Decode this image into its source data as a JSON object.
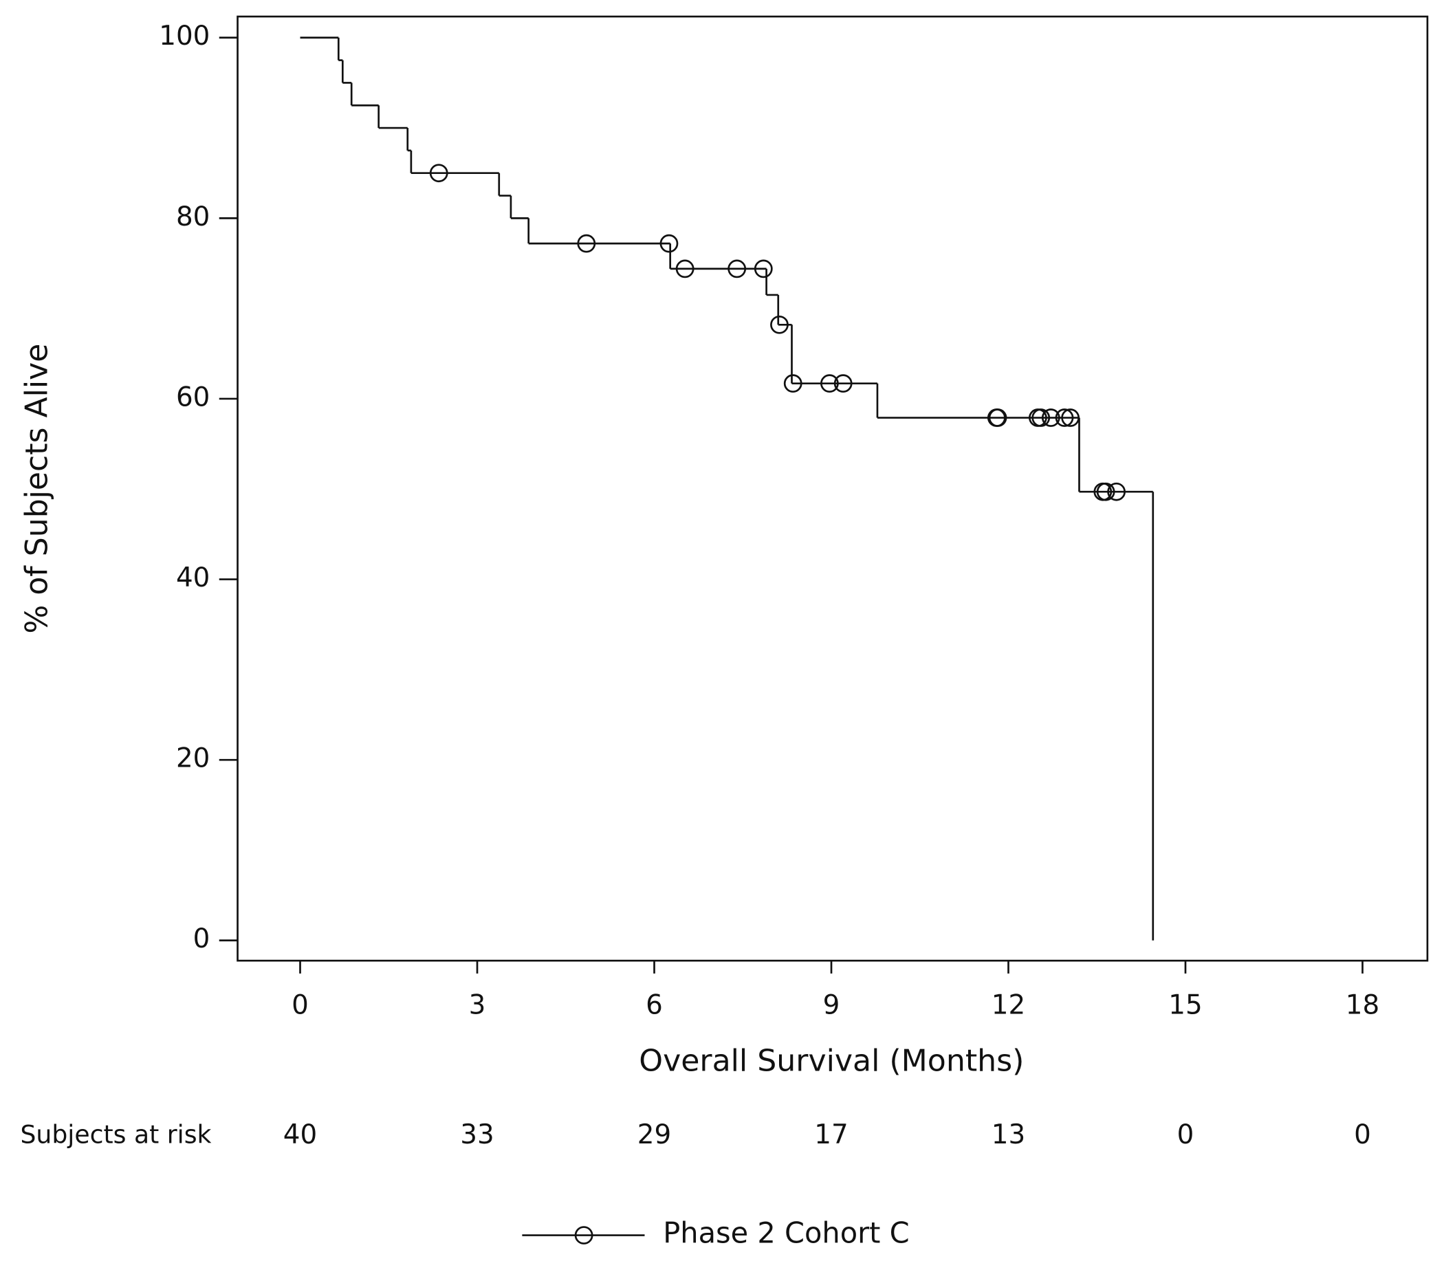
{
  "chart_data": {
    "type": "step",
    "x_label": "Overall Survival (Months)",
    "y_label": "% of Subjects Alive",
    "xlim": [
      -1.06,
      19.1
    ],
    "ylim": [
      -2.24,
      102.34
    ],
    "xticks": [
      0,
      3,
      6,
      9,
      12,
      15,
      18
    ],
    "yticks": [
      0,
      20,
      40,
      60,
      80,
      100
    ],
    "series": [
      {
        "name": "Phase 2 Cohort C",
        "color": "#111111",
        "x": [
          0,
          0.65,
          0.72,
          0.87,
          1.33,
          1.82,
          1.88,
          3.37,
          3.57,
          3.87,
          6.27,
          7.9,
          8.1,
          8.33,
          9.78,
          13.2,
          14.45
        ],
        "values": [
          100,
          97.5,
          95,
          92.5,
          90,
          87.5,
          85,
          82.5,
          80,
          77.2,
          74.4,
          71.5,
          68.2,
          61.7,
          57.9,
          49.7,
          0
        ],
        "censored_x": [
          2.35,
          4.85,
          6.25,
          6.52,
          7.4,
          7.85,
          8.12,
          8.35,
          8.97,
          9.2,
          11.8,
          11.82,
          12.5,
          12.55,
          12.72,
          12.95,
          13.05,
          13.6,
          13.65,
          13.83
        ],
        "censored_values": [
          85,
          77.2,
          77.2,
          74.4,
          74.4,
          74.4,
          68.2,
          61.7,
          61.7,
          61.7,
          57.9,
          57.9,
          57.9,
          57.9,
          57.9,
          57.9,
          57.9,
          49.7,
          49.7,
          49.7
        ]
      }
    ],
    "risk_table": {
      "label": "Subjects at risk",
      "values": [
        40,
        33,
        29,
        17,
        13,
        0,
        0
      ]
    }
  }
}
